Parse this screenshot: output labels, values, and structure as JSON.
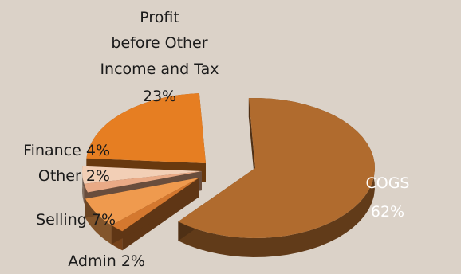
{
  "chart_data": {
    "type": "pie",
    "style": "3d-exploded",
    "slices": [
      {
        "label": "COGS",
        "value": 62,
        "display": "62%",
        "color": "#b06b2e"
      },
      {
        "label": "Admin",
        "value": 2,
        "display": "2%",
        "color": "#d4782f"
      },
      {
        "label": "Selling",
        "value": 7,
        "display": "7%",
        "color": "#ef9a4e"
      },
      {
        "label": "Other",
        "value": 2,
        "display": "2%",
        "color": "#e9aa86"
      },
      {
        "label": "Finance",
        "value": 4,
        "display": "4%",
        "color": "#f2cfb6"
      },
      {
        "label": "Profit before Other Income and Tax",
        "value": 23,
        "display": "23%",
        "color": "#e67e22"
      }
    ],
    "label_texts": {
      "cogs_name": "COGS",
      "cogs_pct": "62%",
      "profit_line1": "Profit",
      "profit_line2": "before Other",
      "profit_line3": "Income and Tax",
      "profit_pct": "23%",
      "finance": "Finance 4%",
      "other": "Other 2%",
      "selling": "Selling 7%",
      "admin": "Admin 2%"
    }
  }
}
